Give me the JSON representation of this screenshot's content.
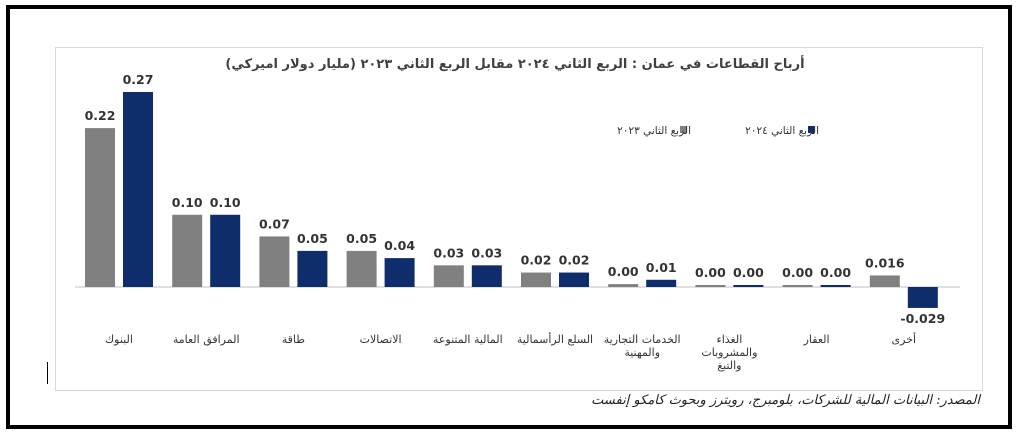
{
  "chart_data": {
    "type": "bar",
    "title": "أرباح القطاعات في عمان : الربع الثاني ٢٠٢٤ مقابل الربع الثاني ٢٠٢٣ (مليار دولار اميركي)",
    "categories": [
      "البنوك",
      "المرافق العامة",
      "طاقة",
      "الاتصالات",
      "المالية المتنوعة",
      "السلع الرأسمالية",
      "الخدمات التجارية والمهنية",
      "الغذاء والمشروبات والتبغ",
      "العقار",
      "أخرى"
    ],
    "category_lines": [
      [
        "البنوك"
      ],
      [
        "المرافق العامة"
      ],
      [
        "طاقة"
      ],
      [
        "الاتصالات"
      ],
      [
        "المالية المتنوعة"
      ],
      [
        "السلع الرأسمالية"
      ],
      [
        "الخدمات التجارية",
        "والمهنية"
      ],
      [
        "الغذاء",
        "والمشروبات",
        "والتبغ"
      ],
      [
        "العقار"
      ],
      [
        "أخرى"
      ]
    ],
    "series": [
      {
        "name": "الربع الثاني ٢٠٢٣",
        "color": "#808080",
        "values": [
          0.22,
          0.1,
          0.07,
          0.05,
          0.03,
          0.02,
          0.004,
          0.002,
          0.002,
          0.016
        ],
        "labels": [
          "0.22",
          "0.10",
          "0.07",
          "0.05",
          "0.03",
          "0.02",
          "0.00",
          "0.00",
          "0.00",
          "0.016"
        ]
      },
      {
        "name": "الربع الثاني ٢٠٢٤",
        "color": "#0f2d6b",
        "values": [
          0.27,
          0.1,
          0.05,
          0.04,
          0.03,
          0.02,
          0.01,
          0.002,
          0.002,
          -0.029
        ],
        "labels": [
          "0.27",
          "0.10",
          "0.05",
          "0.04",
          "0.03",
          "0.02",
          "0.01",
          "0.00",
          "0.00",
          "-0.029"
        ]
      }
    ],
    "ylim": [
      -0.04,
      0.28
    ],
    "grid": false,
    "legend_position": "top-right"
  },
  "source_note": "المصدر: البيانات المالية للشركات، بلومبرج، رويترز وبحوث كامكو إنفست"
}
